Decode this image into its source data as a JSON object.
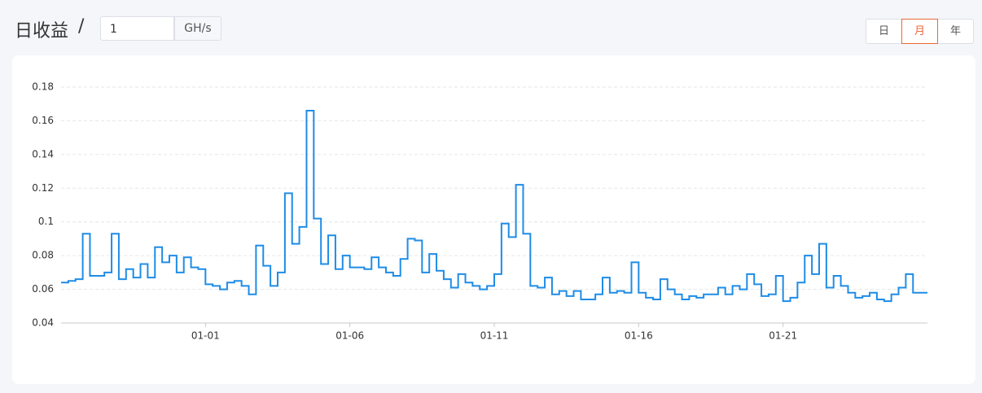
{
  "header": {
    "title": "日收益",
    "separator": "/",
    "input_value": "1",
    "unit": "GH/s",
    "periods": [
      "日",
      "月",
      "年"
    ],
    "active_period": 1
  },
  "chart_data": {
    "type": "line",
    "step": true,
    "categories": [
      null,
      null,
      null,
      null,
      null,
      null,
      null,
      null,
      null,
      null,
      null,
      null,
      null,
      null,
      null,
      null,
      null,
      null,
      null,
      null,
      "01-01",
      null,
      null,
      null,
      null,
      null,
      null,
      null,
      null,
      null,
      null,
      null,
      null,
      null,
      null,
      null,
      null,
      null,
      null,
      null,
      "01-06",
      null,
      null,
      null,
      null,
      null,
      null,
      null,
      null,
      null,
      null,
      null,
      null,
      null,
      null,
      null,
      null,
      null,
      null,
      null,
      "01-11",
      null,
      null,
      null,
      null,
      null,
      null,
      null,
      null,
      null,
      null,
      null,
      null,
      null,
      null,
      null,
      null,
      null,
      null,
      null,
      "01-16",
      null,
      null,
      null,
      null,
      null,
      null,
      null,
      null,
      null,
      null,
      null,
      null,
      null,
      null,
      null,
      null,
      null,
      null,
      null,
      "01-21",
      null,
      null,
      null,
      null,
      null,
      null,
      null,
      null,
      null,
      null,
      null,
      null,
      null,
      null,
      null,
      null,
      null,
      null,
      null
    ],
    "series": [
      {
        "color": "#1f8ce6",
        "values": [
          0.064,
          0.065,
          0.066,
          0.093,
          0.068,
          0.068,
          0.07,
          0.093,
          0.066,
          0.072,
          0.067,
          0.075,
          0.067,
          0.085,
          0.076,
          0.08,
          0.07,
          0.079,
          0.073,
          0.072,
          0.063,
          0.062,
          0.06,
          0.064,
          0.065,
          0.062,
          0.057,
          0.086,
          0.074,
          0.062,
          0.07,
          0.117,
          0.087,
          0.097,
          0.166,
          0.102,
          0.075,
          0.092,
          0.072,
          0.08,
          0.073,
          0.073,
          0.072,
          0.079,
          0.073,
          0.07,
          0.068,
          0.078,
          0.09,
          0.089,
          0.07,
          0.081,
          0.071,
          0.066,
          0.061,
          0.069,
          0.064,
          0.062,
          0.06,
          0.062,
          0.069,
          0.099,
          0.091,
          0.122,
          0.093,
          0.062,
          0.061,
          0.067,
          0.057,
          0.059,
          0.056,
          0.059,
          0.054,
          0.054,
          0.057,
          0.067,
          0.058,
          0.059,
          0.058,
          0.076,
          0.058,
          0.055,
          0.054,
          0.066,
          0.06,
          0.057,
          0.054,
          0.056,
          0.055,
          0.057,
          0.057,
          0.061,
          0.057,
          0.062,
          0.06,
          0.069,
          0.063,
          0.056,
          0.057,
          0.068,
          0.053,
          0.055,
          0.064,
          0.08,
          0.069,
          0.087,
          0.061,
          0.068,
          0.062,
          0.058,
          0.055,
          0.056,
          0.058,
          0.054,
          0.053,
          0.057,
          0.061,
          0.069,
          0.058,
          0.058
        ]
      }
    ],
    "ylim": [
      0.04,
      0.18
    ],
    "yticks": [
      0.04,
      0.06,
      0.08,
      0.1,
      0.12,
      0.14,
      0.16,
      0.18
    ],
    "grid": true
  }
}
